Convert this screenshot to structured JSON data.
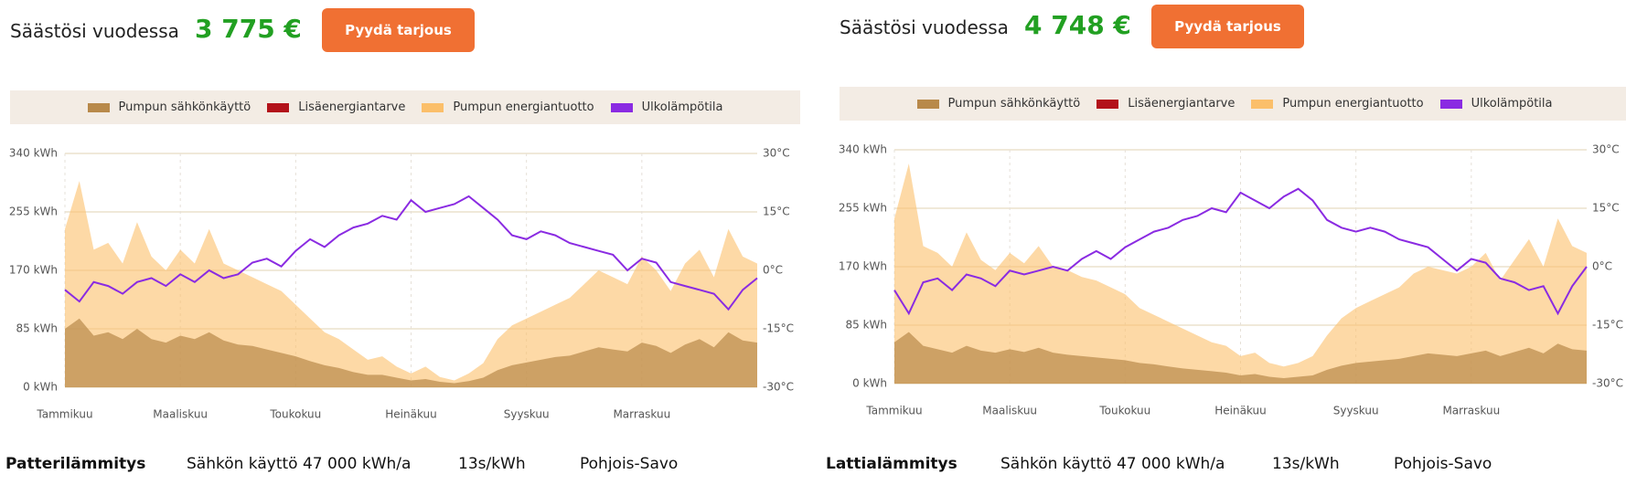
{
  "panels": [
    {
      "savings_label": "Säästösi vuodessa",
      "savings_amount": "3 775 €",
      "button": "Pyydä tarjous",
      "info": {
        "heating": "Patterilämmitys",
        "consumption": "Sähkön käyttö 47 000 kWh/a",
        "price": "13s/kWh",
        "region": "Pohjois-Savo"
      }
    },
    {
      "savings_label": "Säästösi vuodessa",
      "savings_amount": "4 748 €",
      "button": "Pyydä tarjous",
      "info": {
        "heating": "Lattialämmitys",
        "consumption": "Sähkön käyttö 47 000 kWh/a",
        "price": "13s/kWh",
        "region": "Pohjois-Savo"
      }
    }
  ],
  "chart_data": [
    {
      "type": "area",
      "legend": "top",
      "grid": true,
      "x": [
        0,
        0.25,
        0.5,
        0.75,
        1,
        1.25,
        1.5,
        1.75,
        2,
        2.25,
        2.5,
        2.75,
        3,
        3.25,
        3.5,
        3.75,
        4,
        4.25,
        4.5,
        4.75,
        5,
        5.25,
        5.5,
        5.75,
        6,
        6.25,
        6.5,
        6.75,
        7,
        7.25,
        7.5,
        7.75,
        8,
        8.25,
        8.5,
        8.75,
        9,
        9.25,
        9.5,
        9.75,
        10,
        10.25,
        10.5,
        10.75,
        11,
        11.25,
        11.5,
        11.75,
        12
      ],
      "xlim": [
        0,
        12
      ],
      "xticks": [
        {
          "value": 0,
          "label": "Tammikuu"
        },
        {
          "value": 2,
          "label": "Maaliskuu"
        },
        {
          "value": 4,
          "label": "Toukokuu"
        },
        {
          "value": 6,
          "label": "Heinäkuu"
        },
        {
          "value": 8,
          "label": "Syyskuu"
        },
        {
          "value": 10,
          "label": "Marraskuu"
        }
      ],
      "ylim": [
        0,
        340
      ],
      "yticks": [
        {
          "value": 0,
          "label": "0 kWh"
        },
        {
          "value": 85,
          "label": "85 kWh"
        },
        {
          "value": 170,
          "label": "170 kWh"
        },
        {
          "value": 255,
          "label": "255 kWh"
        },
        {
          "value": 340,
          "label": "340 kWh"
        }
      ],
      "y2lim": [
        -30,
        30
      ],
      "y2ticks": [
        {
          "value": -30,
          "label": "-30°C"
        },
        {
          "value": -15,
          "label": "-15°C"
        },
        {
          "value": 0,
          "label": "0°C"
        },
        {
          "value": 15,
          "label": "15°C"
        },
        {
          "value": 30,
          "label": "30°C"
        }
      ],
      "series": [
        {
          "name": "Pumpun sähkönkäyttö",
          "color": "#b8894a",
          "values": [
            85,
            100,
            75,
            80,
            70,
            85,
            70,
            65,
            75,
            70,
            80,
            68,
            62,
            60,
            55,
            50,
            45,
            38,
            32,
            28,
            22,
            18,
            18,
            14,
            10,
            12,
            8,
            6,
            9,
            14,
            25,
            32,
            36,
            40,
            44,
            46,
            52,
            58,
            55,
            52,
            65,
            60,
            50,
            62,
            70,
            58,
            80,
            68,
            65
          ]
        },
        {
          "name": "Lisäenergiantarve",
          "color": "#b3121a",
          "values": [
            0,
            0,
            0,
            0,
            0,
            0,
            0,
            0,
            0,
            0,
            0,
            0,
            0,
            0,
            0,
            0,
            0,
            0,
            0,
            0,
            0,
            0,
            0,
            0,
            0,
            0,
            0,
            0,
            0,
            0,
            0,
            0,
            0,
            0,
            0,
            0,
            0,
            0,
            0,
            0,
            0,
            0,
            0,
            0,
            0,
            0,
            0,
            0,
            0
          ]
        },
        {
          "name": "Pumpun energiantuotto",
          "color": "#fbbf6a",
          "values": [
            230,
            300,
            200,
            210,
            180,
            240,
            190,
            170,
            200,
            180,
            230,
            180,
            170,
            160,
            150,
            140,
            120,
            100,
            80,
            70,
            55,
            40,
            45,
            30,
            20,
            30,
            15,
            10,
            20,
            35,
            70,
            90,
            100,
            110,
            120,
            130,
            150,
            170,
            160,
            150,
            190,
            170,
            140,
            180,
            200,
            160,
            230,
            190,
            180
          ]
        },
        {
          "name": "Ulkolämpötila",
          "color": "#8a2be2",
          "axis": "y2",
          "values": [
            -5,
            -8,
            -3,
            -4,
            -6,
            -3,
            -2,
            -4,
            -1,
            -3,
            0,
            -2,
            -1,
            2,
            3,
            1,
            5,
            8,
            6,
            9,
            11,
            12,
            14,
            13,
            18,
            15,
            16,
            17,
            19,
            16,
            13,
            9,
            8,
            10,
            9,
            7,
            6,
            5,
            4,
            0,
            3,
            2,
            -3,
            -4,
            -5,
            -6,
            -10,
            -5,
            -2
          ]
        }
      ]
    },
    {
      "type": "area",
      "legend": "top",
      "grid": true,
      "x": [
        0,
        0.25,
        0.5,
        0.75,
        1,
        1.25,
        1.5,
        1.75,
        2,
        2.25,
        2.5,
        2.75,
        3,
        3.25,
        3.5,
        3.75,
        4,
        4.25,
        4.5,
        4.75,
        5,
        5.25,
        5.5,
        5.75,
        6,
        6.25,
        6.5,
        6.75,
        7,
        7.25,
        7.5,
        7.75,
        8,
        8.25,
        8.5,
        8.75,
        9,
        9.25,
        9.5,
        9.75,
        10,
        10.25,
        10.5,
        10.75,
        11,
        11.25,
        11.5,
        11.75,
        12
      ],
      "xlim": [
        0,
        12
      ],
      "xticks": [
        {
          "value": 0,
          "label": "Tammikuu"
        },
        {
          "value": 2,
          "label": "Maaliskuu"
        },
        {
          "value": 4,
          "label": "Toukokuu"
        },
        {
          "value": 6,
          "label": "Heinäkuu"
        },
        {
          "value": 8,
          "label": "Syyskuu"
        },
        {
          "value": 10,
          "label": "Marraskuu"
        }
      ],
      "ylim": [
        0,
        340
      ],
      "yticks": [
        {
          "value": 0,
          "label": "0 kWh"
        },
        {
          "value": 85,
          "label": "85 kWh"
        },
        {
          "value": 170,
          "label": "170 kWh"
        },
        {
          "value": 255,
          "label": "255 kWh"
        },
        {
          "value": 340,
          "label": "340 kWh"
        }
      ],
      "y2lim": [
        -30,
        30
      ],
      "y2ticks": [
        {
          "value": -30,
          "label": "-30°C"
        },
        {
          "value": -15,
          "label": "-15°C"
        },
        {
          "value": 0,
          "label": "0°C"
        },
        {
          "value": 15,
          "label": "15°C"
        },
        {
          "value": 30,
          "label": "30°C"
        }
      ],
      "series": [
        {
          "name": "Pumpun sähkönkäyttö",
          "color": "#b8894a",
          "values": [
            60,
            75,
            55,
            50,
            45,
            55,
            48,
            45,
            50,
            46,
            52,
            45,
            42,
            40,
            38,
            36,
            34,
            30,
            28,
            25,
            22,
            20,
            18,
            16,
            12,
            14,
            10,
            8,
            10,
            12,
            20,
            26,
            30,
            32,
            34,
            36,
            40,
            44,
            42,
            40,
            44,
            48,
            40,
            46,
            52,
            44,
            58,
            50,
            48
          ]
        },
        {
          "name": "Lisäenergiantarve",
          "color": "#b3121a",
          "values": [
            0,
            0,
            0,
            0,
            0,
            0,
            0,
            0,
            0,
            0,
            0,
            0,
            0,
            0,
            0,
            0,
            0,
            0,
            0,
            0,
            0,
            0,
            0,
            0,
            0,
            0,
            0,
            0,
            0,
            0,
            0,
            0,
            0,
            0,
            0,
            0,
            0,
            0,
            0,
            0,
            0,
            0,
            0,
            0,
            0,
            0,
            0,
            0,
            0
          ]
        },
        {
          "name": "Pumpun energiantuotto",
          "color": "#fbbf6a",
          "values": [
            240,
            320,
            200,
            190,
            170,
            220,
            180,
            165,
            190,
            175,
            200,
            170,
            165,
            155,
            150,
            140,
            130,
            110,
            100,
            90,
            80,
            70,
            60,
            55,
            40,
            45,
            30,
            25,
            30,
            40,
            70,
            95,
            110,
            120,
            130,
            140,
            160,
            170,
            165,
            160,
            170,
            190,
            150,
            180,
            210,
            170,
            240,
            200,
            190
          ]
        },
        {
          "name": "Ulkolämpötila",
          "color": "#8a2be2",
          "axis": "y2",
          "values": [
            -6,
            -12,
            -4,
            -3,
            -6,
            -2,
            -3,
            -5,
            -1,
            -2,
            -1,
            0,
            -1,
            2,
            4,
            2,
            5,
            7,
            9,
            10,
            12,
            13,
            15,
            14,
            19,
            17,
            15,
            18,
            20,
            17,
            12,
            10,
            9,
            10,
            9,
            7,
            6,
            5,
            2,
            -1,
            2,
            1,
            -3,
            -4,
            -6,
            -5,
            -12,
            -5,
            0
          ]
        }
      ]
    }
  ]
}
